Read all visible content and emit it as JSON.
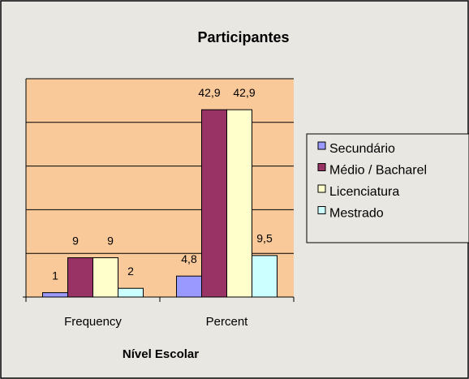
{
  "chart_data": {
    "type": "bar",
    "title": "Participantes",
    "x_label": "Nível Escolar",
    "categories": [
      "Frequency",
      "Percent"
    ],
    "series": [
      {
        "name": "Secundário",
        "color": "#9999ff",
        "values": [
          1,
          4.8
        ],
        "value_labels": [
          "1",
          "4,8"
        ]
      },
      {
        "name": "Médio / Bacharel",
        "color": "#993366",
        "values": [
          9,
          42.9
        ],
        "value_labels": [
          "9",
          "42,9"
        ]
      },
      {
        "name": "Licenciatura",
        "color": "#ffffcc",
        "values": [
          9,
          42.9
        ],
        "value_labels": [
          "9",
          "42,9"
        ]
      },
      {
        "name": "Mestrado",
        "color": "#ccffff",
        "values": [
          2,
          9.5
        ],
        "value_labels": [
          "2",
          "9,5"
        ]
      }
    ],
    "ylim": [
      0,
      50
    ],
    "yticks": [
      0,
      10,
      20,
      30,
      40,
      50
    ],
    "grid": true,
    "legend": "right"
  }
}
